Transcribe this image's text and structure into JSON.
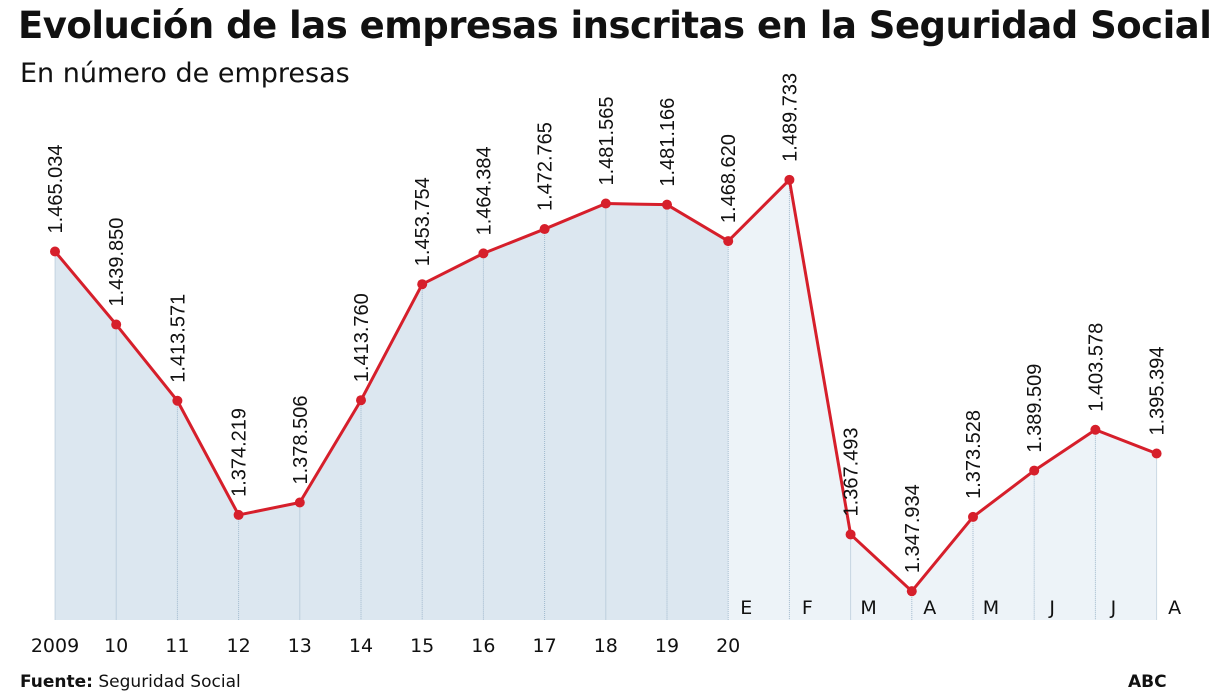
{
  "title": "Evolución de las empresas inscritas en la Seguridad Social",
  "subtitle": "En número de empresas",
  "source_label": "Fuente:",
  "source_value": "Seguridad Social",
  "brand": "ABC",
  "colors": {
    "line": "#d61f2b",
    "fill_left": "#dce7f0",
    "fill_right": "#edf3f8",
    "grid": "#9fb8cc"
  },
  "chart_data": {
    "type": "area",
    "title": "Evolución de las empresas inscritas en la Seguridad Social",
    "subtitle": "En número de empresas",
    "values": [
      1465034,
      1439850,
      1413571,
      1374219,
      1378506,
      1413760,
      1453754,
      1464384,
      1472765,
      1481565,
      1481166,
      1468620,
      1489733,
      1367493,
      1347934,
      1373528,
      1389509,
      1403578,
      1395394
    ],
    "data_labels": [
      "1.465.034",
      "1.439.850",
      "1.413.571",
      "1.374.219",
      "1.378.506",
      "1.413.760",
      "1.453.754",
      "1.464.384",
      "1.472.765",
      "1.481.565",
      "1.481.166",
      "1.468.620",
      "1.489.733",
      "1.367.493",
      "1.347.934",
      "1.373.528",
      "1.389.509",
      "1.403.578",
      "1.395.394"
    ],
    "year_labels": [
      "2009",
      "10",
      "11",
      "12",
      "13",
      "14",
      "15",
      "16",
      "17",
      "18",
      "19",
      "20"
    ],
    "month_labels": [
      "E",
      "F",
      "M",
      "A",
      "M",
      "J",
      "J",
      "A"
    ],
    "ylim": [
      1338000,
      1540000
    ],
    "grid": false
  }
}
